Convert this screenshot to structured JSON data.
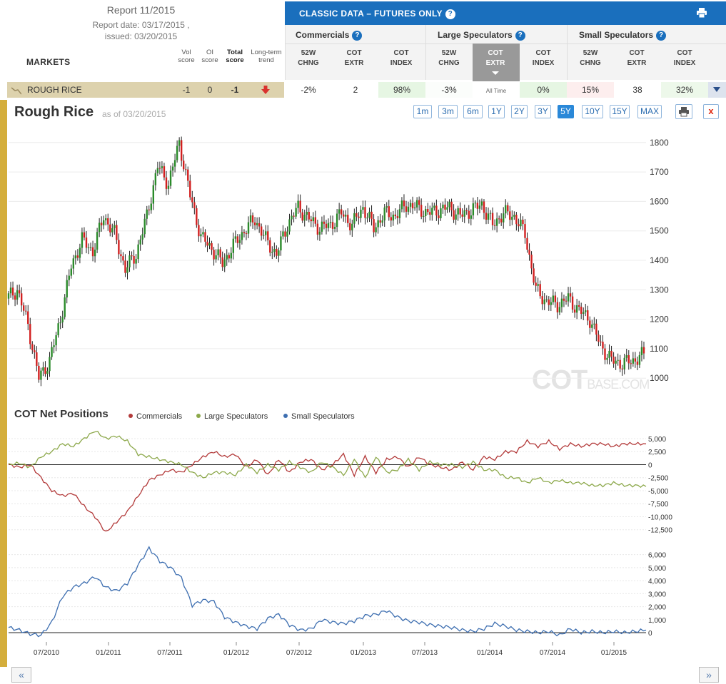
{
  "report": {
    "title": "Report 11/2015",
    "report_date": "Report date: 03/17/2015 ,",
    "issued": "issued: 03/20/2015"
  },
  "markets_label": "MARKETS",
  "score_headers": {
    "vol": [
      "Vol",
      "score"
    ],
    "oi": [
      "OI",
      "score"
    ],
    "total": [
      "Total",
      "score"
    ],
    "trend": [
      "Long-term",
      "trend"
    ]
  },
  "classic_title": "CLASSIC DATA – FUTURES ONLY",
  "groups": [
    {
      "label": "Commercials",
      "cols": [
        [
          "52W",
          "CHNG"
        ],
        [
          "COT",
          "EXTR"
        ],
        [
          "COT",
          "INDEX"
        ]
      ]
    },
    {
      "label": "Large Speculators",
      "cols": [
        [
          "52W",
          "CHNG"
        ],
        [
          "COT",
          "EXTR"
        ],
        [
          "COT",
          "INDEX"
        ]
      ]
    },
    {
      "label": "Small Speculators",
      "cols": [
        [
          "52W",
          "CHNG"
        ],
        [
          "COT",
          "EXTR"
        ],
        [
          "COT",
          "INDEX"
        ]
      ]
    }
  ],
  "row": {
    "name": "ROUGH RICE",
    "vol": "-1",
    "oi": "0",
    "total": "-1",
    "values": [
      "-2%",
      "2",
      "98%",
      "-3%",
      "All Time",
      "0%",
      "15%",
      "38",
      "32%"
    ]
  },
  "chart": {
    "title": "Rough Rice",
    "asof": "as of 03/20/2015",
    "ranges": [
      "1m",
      "3m",
      "6m",
      "1Y",
      "2Y",
      "3Y",
      "5Y",
      "10Y",
      "15Y",
      "MAX"
    ],
    "active_range": "5Y",
    "close_label": "x",
    "watermark_main": "COT",
    "watermark_sub": "BASE.COM"
  },
  "cot": {
    "title": "COT Net Positions",
    "legend": [
      {
        "label": "Commercials",
        "color": "#b33a3a"
      },
      {
        "label": "Large Speculators",
        "color": "#8ca84a"
      },
      {
        "label": "Small Speculators",
        "color": "#3d6eb0"
      }
    ]
  },
  "nav": {
    "prev": "«",
    "next": "»"
  },
  "chart_data": [
    {
      "type": "line",
      "title": "Rough Rice",
      "ylabel": "",
      "yticks": [
        1000,
        1100,
        1200,
        1300,
        1400,
        1500,
        1600,
        1700,
        1800
      ],
      "ylim": [
        940,
        1860
      ],
      "x": [
        "2010-04",
        "2010-05",
        "2010-06",
        "2010-07",
        "2010-08",
        "2010-09",
        "2010-10",
        "2010-11",
        "2010-12",
        "2011-01",
        "2011-02",
        "2011-03",
        "2011-04",
        "2011-05",
        "2011-06",
        "2011-07",
        "2011-08",
        "2011-09",
        "2011-10",
        "2011-11",
        "2011-12",
        "2012-01",
        "2012-02",
        "2012-03",
        "2012-04",
        "2012-05",
        "2012-06",
        "2012-07",
        "2012-08",
        "2012-09",
        "2012-10",
        "2012-11",
        "2012-12",
        "2013-01",
        "2013-02",
        "2013-03",
        "2013-04",
        "2013-05",
        "2013-06",
        "2013-07",
        "2013-08",
        "2013-09",
        "2013-10",
        "2013-11",
        "2013-12",
        "2014-01",
        "2014-02",
        "2014-03",
        "2014-04",
        "2014-05",
        "2014-06",
        "2014-07",
        "2014-08",
        "2014-09",
        "2014-10",
        "2014-11",
        "2014-12",
        "2015-01",
        "2015-02",
        "2015-03"
      ],
      "values": [
        1270,
        1300,
        1180,
        1000,
        1060,
        1200,
        1380,
        1470,
        1430,
        1550,
        1490,
        1370,
        1420,
        1550,
        1720,
        1660,
        1800,
        1620,
        1480,
        1440,
        1390,
        1450,
        1500,
        1540,
        1470,
        1420,
        1520,
        1580,
        1540,
        1510,
        1520,
        1560,
        1520,
        1580,
        1510,
        1560,
        1550,
        1590,
        1580,
        1560,
        1570,
        1580,
        1550,
        1570,
        1590,
        1520,
        1560,
        1550,
        1490,
        1300,
        1260,
        1250,
        1270,
        1230,
        1200,
        1110,
        1060,
        1050,
        1060,
        1080
      ],
      "xticks": [
        "07/2010",
        "01/2011",
        "07/2011",
        "01/2012",
        "07/2012",
        "01/2013",
        "07/2013",
        "01/2014",
        "07/2014",
        "01/2015"
      ]
    },
    {
      "type": "line",
      "title": "COT Net Positions",
      "yticks": [
        5000,
        2500,
        0,
        -2500,
        -5000,
        -7500,
        -10000,
        -12500
      ],
      "ytick_labels": [
        "5,000",
        "2,500",
        "0",
        "-2,500",
        "-5,000",
        "-7,500",
        "-10,000",
        "-12,500"
      ],
      "ylim": [
        -13500,
        6500
      ],
      "series": [
        {
          "name": "Commercials",
          "values": [
            0,
            -500,
            0,
            -2500,
            -5000,
            -6000,
            -5500,
            -8000,
            -10000,
            -13000,
            -11000,
            -9000,
            -6000,
            -3000,
            -2000,
            -1000,
            -1500,
            0,
            1500,
            2500,
            1500,
            2000,
            -500,
            1000,
            -2000,
            1000,
            -1500,
            500,
            1000,
            -1000,
            0,
            2000,
            -2000,
            1500,
            -1500,
            1000,
            1500,
            -500,
            1500,
            0,
            -500,
            -1000,
            500,
            -1000,
            1500,
            1000,
            2500,
            2500,
            4500,
            3500,
            4500,
            3000,
            4000,
            3500,
            4000,
            4000,
            3500,
            4000,
            4000,
            4000
          ]
        },
        {
          "name": "Large Speculators",
          "values": [
            0,
            300,
            -500,
            1500,
            2500,
            4000,
            3500,
            5000,
            6500,
            5000,
            5500,
            4500,
            2000,
            1500,
            1000,
            500,
            0,
            -1500,
            -2500,
            -1500,
            -1500,
            -2000,
            0,
            -1500,
            0,
            -1000,
            500,
            -500,
            -1500,
            500,
            -500,
            -2000,
            1000,
            -2500,
            1500,
            -1500,
            -1000,
            1000,
            -1000,
            500,
            0,
            0,
            -500,
            500,
            -1000,
            -1000,
            -2500,
            -2500,
            -3500,
            -2500,
            -3500,
            -3000,
            -3500,
            -3500,
            -4000,
            -4000,
            -3500,
            -4000,
            -4000,
            -4200
          ]
        }
      ]
    },
    {
      "type": "line",
      "title": "",
      "yticks": [
        6000,
        5000,
        4000,
        3000,
        2000,
        1000,
        0
      ],
      "ytick_labels": [
        "6,000",
        "5,000",
        "4,000",
        "3,000",
        "2,000",
        "1,000",
        "0"
      ],
      "ylim": [
        -600,
        6800
      ],
      "series": [
        {
          "name": "Small Speculators",
          "values": [
            400,
            200,
            -100,
            -200,
            800,
            2800,
            3500,
            3800,
            4300,
            3500,
            3200,
            3800,
            5200,
            6500,
            5500,
            5000,
            4200,
            2100,
            2500,
            2400,
            1200,
            800,
            500,
            300,
            1100,
            1400,
            600,
            200,
            300,
            1000,
            800,
            700,
            900,
            1300,
            1400,
            1700,
            1200,
            900,
            800,
            600,
            500,
            400,
            200,
            100,
            300,
            700,
            500,
            200,
            100,
            0,
            100,
            -200,
            300,
            0,
            100,
            0,
            100,
            0,
            100,
            200
          ]
        }
      ],
      "xticks": [
        "07/2010",
        "01/2011",
        "07/2011",
        "01/2012",
        "07/2012",
        "01/2013",
        "07/2013",
        "01/2014",
        "07/2014",
        "01/2015"
      ]
    }
  ]
}
